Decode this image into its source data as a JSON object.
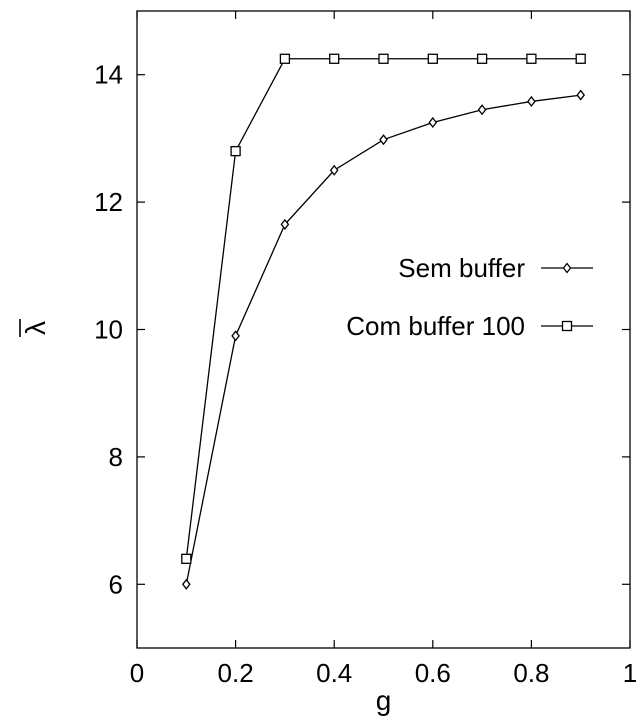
{
  "chart_data": {
    "type": "line",
    "xlabel": "g",
    "ylabel": "λ",
    "ylabel_overline": true,
    "xlim": [
      0,
      1
    ],
    "ylim": [
      5,
      15
    ],
    "x_ticks": [
      0,
      0.2,
      0.4,
      0.6,
      0.8,
      1
    ],
    "x_tick_labels": [
      "0",
      "0.2",
      "0.4",
      "0.6",
      "0.8",
      "1"
    ],
    "y_ticks": [
      6,
      8,
      10,
      12,
      14
    ],
    "y_tick_labels": [
      "6",
      "8",
      "10",
      "12",
      "14"
    ],
    "grid": false,
    "legend_position": "center-right",
    "series": [
      {
        "name": "Sem buffer",
        "marker": "diamond",
        "color": "#000000",
        "x": [
          0.1,
          0.2,
          0.3,
          0.4,
          0.5,
          0.6,
          0.7,
          0.8,
          0.9
        ],
        "y": [
          6.0,
          9.9,
          11.65,
          12.5,
          12.98,
          13.25,
          13.45,
          13.58,
          13.68
        ]
      },
      {
        "name": "Com buffer 100",
        "marker": "square",
        "color": "#000000",
        "x": [
          0.1,
          0.2,
          0.3,
          0.4,
          0.5,
          0.6,
          0.7,
          0.8,
          0.9
        ],
        "y": [
          6.4,
          12.8,
          14.25,
          14.25,
          14.25,
          14.25,
          14.25,
          14.25,
          14.25
        ]
      }
    ]
  }
}
